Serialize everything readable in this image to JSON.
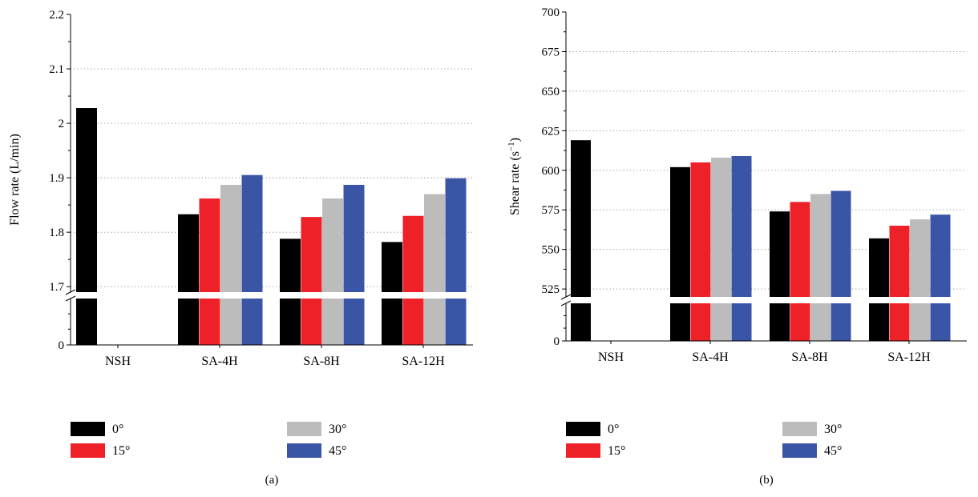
{
  "chart_data": [
    {
      "type": "bar",
      "panel_label": "(a)",
      "ylabel": "Flow rate (L/min)",
      "categories": [
        "NSH",
        "SA-4H",
        "SA-8H",
        "SA-12H"
      ],
      "axis_break": {
        "low": 0,
        "high": 1.69
      },
      "ylim": [
        1.69,
        2.2
      ],
      "yticks": [
        1.7,
        1.8,
        1.9,
        2,
        2.1,
        2.2
      ],
      "ytick_labels": [
        "1.7",
        "1.8",
        "1.9",
        "2",
        "2.1",
        "2.2"
      ],
      "zero_label": "0",
      "grid": "dotted horizontal",
      "series": [
        {
          "name": "0°",
          "color": "#000000",
          "values": [
            2.028,
            1.833,
            1.788,
            1.782
          ]
        },
        {
          "name": "15°",
          "color": "#ee2129",
          "values": [
            null,
            1.862,
            1.828,
            1.83
          ]
        },
        {
          "name": "30°",
          "color": "#bcbcbc",
          "values": [
            null,
            1.887,
            1.862,
            1.87
          ]
        },
        {
          "name": "45°",
          "color": "#3a55a6",
          "values": [
            null,
            1.905,
            1.887,
            1.899
          ]
        }
      ],
      "legend": "bottom"
    },
    {
      "type": "bar",
      "panel_label": "(b)",
      "ylabel": "Shear rate (s",
      "ylabel_sup": "−1",
      "ylabel_close": ")",
      "categories": [
        "NSH",
        "SA-4H",
        "SA-8H",
        "SA-12H"
      ],
      "axis_break": {
        "low": 0,
        "high": 520
      },
      "ylim": [
        520,
        700
      ],
      "yticks": [
        525,
        550,
        575,
        600,
        625,
        650,
        675,
        700
      ],
      "ytick_labels": [
        "525",
        "550",
        "575",
        "600",
        "625",
        "650",
        "675",
        "700"
      ],
      "zero_label": "0",
      "grid": "dotted horizontal",
      "series": [
        {
          "name": "0°",
          "color": "#000000",
          "values": [
            619,
            602,
            574,
            557
          ]
        },
        {
          "name": "15°",
          "color": "#ee2129",
          "values": [
            null,
            605,
            580,
            565
          ]
        },
        {
          "name": "30°",
          "color": "#bcbcbc",
          "values": [
            null,
            608,
            585,
            569
          ]
        },
        {
          "name": "45°",
          "color": "#3a55a6",
          "values": [
            null,
            609,
            587,
            572
          ]
        }
      ],
      "legend": "bottom"
    }
  ]
}
